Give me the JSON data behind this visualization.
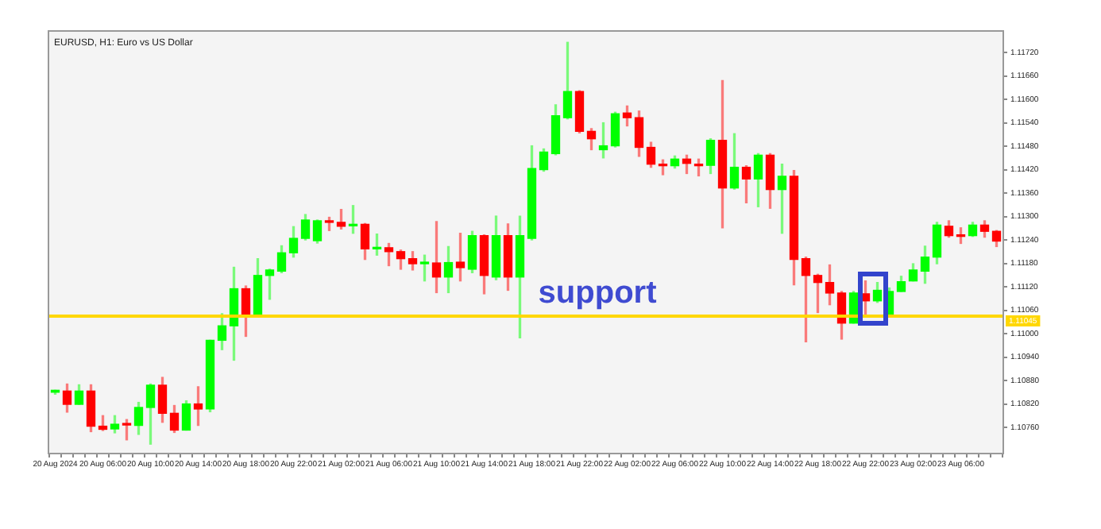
{
  "chart_data": {
    "type": "candlestick",
    "title": "EURUSD, H1: Euro vs US Dollar",
    "categories": [
      "20 Aug 2024",
      null,
      null,
      null,
      "20 Aug 06:00",
      null,
      null,
      null,
      "20 Aug 10:00",
      null,
      null,
      null,
      "20 Aug 14:00",
      null,
      null,
      null,
      "20 Aug 18:00",
      null,
      null,
      null,
      "20 Aug 22:00",
      null,
      null,
      null,
      "21 Aug 02:00",
      null,
      null,
      null,
      "21 Aug 06:00",
      null,
      null,
      null,
      "21 Aug 10:00",
      null,
      null,
      null,
      "21 Aug 14:00",
      null,
      null,
      null,
      "21 Aug 18:00",
      null,
      null,
      null,
      "21 Aug 22:00",
      null,
      null,
      null,
      "22 Aug 02:00",
      null,
      null,
      null,
      "22 Aug 06:00",
      null,
      null,
      null,
      "22 Aug 10:00",
      null,
      null,
      null,
      "22 Aug 14:00",
      null,
      null,
      null,
      "22 Aug 18:00",
      null,
      null,
      null,
      "22 Aug 22:00",
      null,
      null,
      null,
      "23 Aug 02:00",
      null,
      null,
      null,
      "23 Aug 06:00",
      null,
      null,
      null
    ],
    "ohlc": [
      [
        1.1085,
        1.10855,
        1.10845,
        1.10855
      ],
      [
        1.10853,
        1.10871,
        1.10799,
        1.10819
      ],
      [
        1.10819,
        1.10869,
        1.10819,
        1.10853
      ],
      [
        1.10853,
        1.10869,
        1.10749,
        1.10763
      ],
      [
        1.10763,
        1.1079,
        1.10752,
        1.10755
      ],
      [
        1.10756,
        1.1079,
        1.10746,
        1.10768
      ],
      [
        1.1077,
        1.1078,
        1.10728,
        1.10766
      ],
      [
        1.10765,
        1.10824,
        1.10742,
        1.10811
      ],
      [
        1.10811,
        1.10871,
        1.10717,
        1.10868
      ],
      [
        1.10868,
        1.10888,
        1.10773,
        1.10796
      ],
      [
        1.10796,
        1.10816,
        1.10747,
        1.10753
      ],
      [
        1.10753,
        1.10828,
        1.10753,
        1.1082
      ],
      [
        1.1082,
        1.10864,
        1.10765,
        1.10807
      ],
      [
        1.10807,
        1.10983,
        1.108,
        1.10983
      ],
      [
        1.10983,
        1.11051,
        1.10959,
        1.1102
      ],
      [
        1.1102,
        1.1117,
        1.10932,
        1.11115
      ],
      [
        1.11115,
        1.11122,
        1.10993,
        1.11047
      ],
      [
        1.11047,
        1.11192,
        1.11043,
        1.11149
      ],
      [
        1.11149,
        1.11165,
        1.11088,
        1.11163
      ],
      [
        1.1116,
        1.11225,
        1.11156,
        1.11207
      ],
      [
        1.11207,
        1.11274,
        1.11196,
        1.11244
      ],
      [
        1.11244,
        1.11305,
        1.1124,
        1.11291
      ],
      [
        1.11238,
        1.11291,
        1.11232,
        1.11289
      ],
      [
        1.11289,
        1.11298,
        1.11264,
        1.11285
      ],
      [
        1.11285,
        1.11318,
        1.11268,
        1.11275
      ],
      [
        1.11276,
        1.11328,
        1.11257,
        1.1128
      ],
      [
        1.1128,
        1.11282,
        1.1119,
        1.11217
      ],
      [
        1.11217,
        1.11255,
        1.11201,
        1.1122
      ],
      [
        1.1122,
        1.11231,
        1.11174,
        1.1121
      ],
      [
        1.1121,
        1.11214,
        1.11165,
        1.11192
      ],
      [
        1.11192,
        1.1121,
        1.11163,
        1.11179
      ],
      [
        1.11179,
        1.11201,
        1.11135,
        1.11181
      ],
      [
        1.11181,
        1.11287,
        1.11105,
        1.11145
      ],
      [
        1.11145,
        1.11223,
        1.11105,
        1.11182
      ],
      [
        1.11183,
        1.11257,
        1.11135,
        1.11169
      ],
      [
        1.11165,
        1.11262,
        1.11156,
        1.11251
      ],
      [
        1.11251,
        1.11253,
        1.11102,
        1.11149
      ],
      [
        1.11145,
        1.11301,
        1.11138,
        1.11251
      ],
      [
        1.11251,
        1.11281,
        1.11111,
        1.11145
      ],
      [
        1.11145,
        1.11301,
        1.10989,
        1.11251
      ],
      [
        1.11244,
        1.11481,
        1.1124,
        1.11423
      ],
      [
        1.1142,
        1.11473,
        1.11416,
        1.11465
      ],
      [
        1.11461,
        1.11586,
        1.11458,
        1.11558
      ],
      [
        1.11553,
        1.11746,
        1.1155,
        1.1162
      ],
      [
        1.1162,
        1.11622,
        1.11514,
        1.11518
      ],
      [
        1.11518,
        1.11525,
        1.11471,
        1.11499
      ],
      [
        1.11471,
        1.1154,
        1.1145,
        1.11481
      ],
      [
        1.11481,
        1.11567,
        1.11478,
        1.11563
      ],
      [
        1.11565,
        1.11583,
        1.11532,
        1.11553
      ],
      [
        1.11553,
        1.1157,
        1.11454,
        1.11477
      ],
      [
        1.11477,
        1.1149,
        1.11426,
        1.11434
      ],
      [
        1.11434,
        1.11445,
        1.11407,
        1.1143
      ],
      [
        1.1143,
        1.11455,
        1.11424,
        1.11447
      ],
      [
        1.11447,
        1.11457,
        1.1141,
        1.11436
      ],
      [
        1.11434,
        1.11447,
        1.11404,
        1.1143
      ],
      [
        1.11431,
        1.11499,
        1.1141,
        1.11495
      ],
      [
        1.11495,
        1.11648,
        1.11271,
        1.11373
      ],
      [
        1.11373,
        1.11512,
        1.1137,
        1.11426
      ],
      [
        1.11426,
        1.1143,
        1.11335,
        1.11396
      ],
      [
        1.11396,
        1.11461,
        1.11325,
        1.11457
      ],
      [
        1.11457,
        1.11461,
        1.11321,
        1.11369
      ],
      [
        1.11369,
        1.11434,
        1.11257,
        1.11403
      ],
      [
        1.11403,
        1.11418,
        1.11125,
        1.1119
      ],
      [
        1.11192,
        1.11196,
        1.10979,
        1.11149
      ],
      [
        1.11149,
        1.11152,
        1.11054,
        1.11131
      ],
      [
        1.11131,
        1.11176,
        1.11074,
        1.11104
      ],
      [
        1.11104,
        1.11108,
        1.10986,
        1.11027
      ],
      [
        1.11027,
        1.11108,
        1.11027,
        1.11104
      ],
      [
        1.11102,
        1.11135,
        1.11043,
        1.11084
      ],
      [
        1.11084,
        1.11131,
        1.1108,
        1.11111
      ],
      [
        1.11047,
        1.11117,
        1.11045,
        1.11108
      ],
      [
        1.11108,
        1.11147,
        1.11108,
        1.11133
      ],
      [
        1.11135,
        1.11179,
        1.11135,
        1.11163
      ],
      [
        1.1116,
        1.11224,
        1.11129,
        1.11196
      ],
      [
        1.11196,
        1.11285,
        1.11179,
        1.11278
      ],
      [
        1.11275,
        1.11289,
        1.11247,
        1.11251
      ],
      [
        1.11253,
        1.11271,
        1.11231,
        1.11249
      ],
      [
        1.11251,
        1.11285,
        1.11249,
        1.11278
      ],
      [
        1.11278,
        1.11289,
        1.11247,
        1.11262
      ],
      [
        1.11262,
        1.11264,
        1.11223,
        1.11237
      ]
    ],
    "colors": [
      "#00ff00",
      "#ff0000",
      "#00ff00",
      "#ff0000",
      "#ff0000",
      "#00ff00",
      "#ff0000",
      "#00ff00",
      "#00ff00",
      "#ff0000",
      "#ff0000",
      "#00ff00",
      "#ff0000",
      "#00ff00",
      "#00ff00",
      "#00ff00",
      "#ff0000",
      "#00ff00",
      "#00ff00",
      "#00ff00",
      "#00ff00",
      "#00ff00",
      "#00ff00",
      "#ff0000",
      "#ff0000",
      "#00ff00",
      "#ff0000",
      "#00ff00",
      "#ff0000",
      "#ff0000",
      "#ff0000",
      "#00ff00",
      "#ff0000",
      "#00ff00",
      "#ff0000",
      "#00ff00",
      "#ff0000",
      "#00ff00",
      "#ff0000",
      "#00ff00",
      "#00ff00",
      "#00ff00",
      "#00ff00",
      "#00ff00",
      "#ff0000",
      "#ff0000",
      "#00ff00",
      "#00ff00",
      "#ff0000",
      "#ff0000",
      "#ff0000",
      "#ff0000",
      "#00ff00",
      "#ff0000",
      "#ff0000",
      "#00ff00",
      "#ff0000",
      "#00ff00",
      "#ff0000",
      "#00ff00",
      "#ff0000",
      "#00ff00",
      "#ff0000",
      "#ff0000",
      "#ff0000",
      "#ff0000",
      "#ff0000",
      "#00ff00",
      "#ff0000",
      "#00ff00",
      "#00ff00",
      "#00ff00",
      "#00ff00",
      "#00ff00",
      "#00ff00",
      "#ff0000",
      "#ff0000",
      "#00ff00",
      "#ff0000",
      "#ff0000"
    ],
    "ylim": [
      1.10695,
      1.11773
    ],
    "yticks": [
      {
        "value": 1.1076,
        "label": "1.10760"
      },
      {
        "value": 1.1082,
        "label": "1.10820"
      },
      {
        "value": 1.1088,
        "label": "1.10880"
      },
      {
        "value": 1.1094,
        "label": "1.10940"
      },
      {
        "value": 1.11,
        "label": "1.11000"
      },
      {
        "value": 1.1106,
        "label": "1.11060"
      },
      {
        "value": 1.1112,
        "label": "1.11120"
      },
      {
        "value": 1.1118,
        "label": "1.11180"
      },
      {
        "value": 1.1124,
        "label": "1.11240"
      },
      {
        "value": 1.113,
        "label": "1.11300"
      },
      {
        "value": 1.1136,
        "label": "1.11360"
      },
      {
        "value": 1.1142,
        "label": "1.11420"
      },
      {
        "value": 1.1148,
        "label": "1.11480"
      },
      {
        "value": 1.1154,
        "label": "1.11540"
      },
      {
        "value": 1.116,
        "label": "1.11600"
      },
      {
        "value": 1.1166,
        "label": "1.11660"
      },
      {
        "value": 1.1172,
        "label": "1.11720"
      }
    ],
    "ref_lines": [
      {
        "axis": "y",
        "value": 1.11045,
        "label": "1.11045",
        "color": "#ffd700"
      }
    ],
    "annotations": [
      {
        "text": "support",
        "y": 1.11045
      }
    ]
  }
}
